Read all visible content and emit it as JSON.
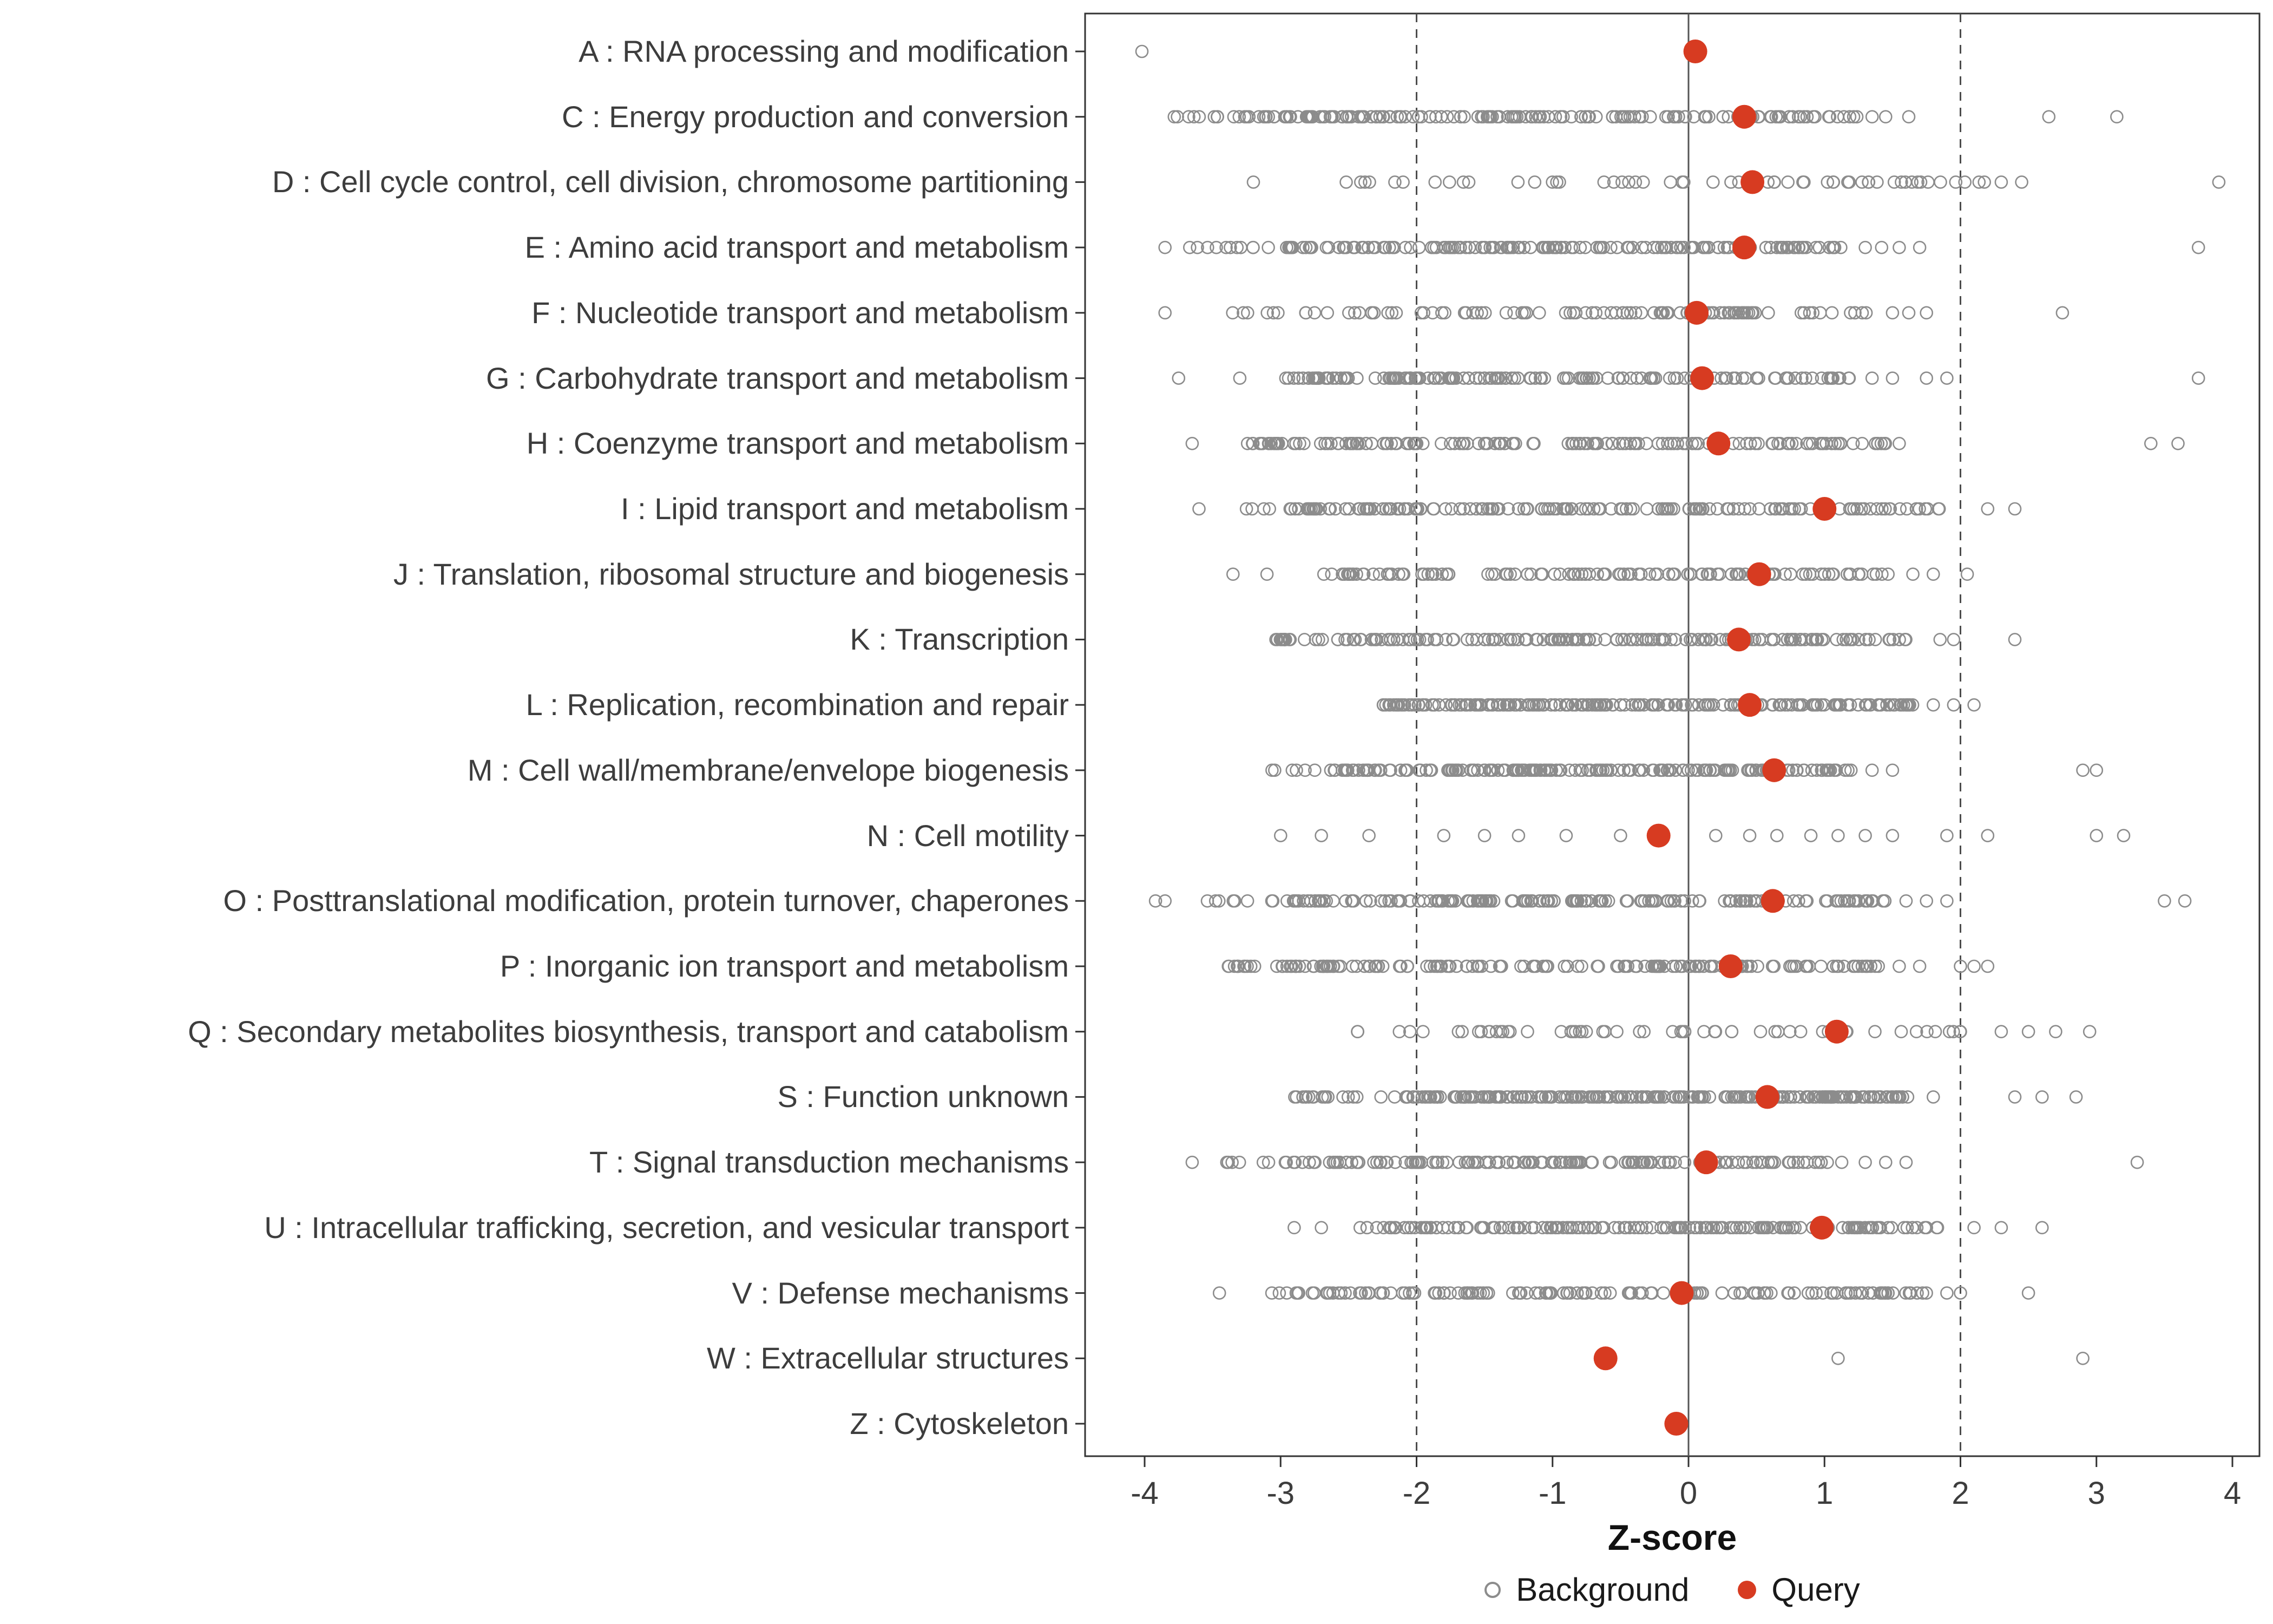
{
  "figure": {
    "xlabel": "Z-score",
    "colors": {
      "query": "#d73b21",
      "background_stroke": "#8c8c8c",
      "axis_text": "#3d3d3d",
      "panel_border": "#333333",
      "reference_line": "#555555"
    }
  },
  "chart_data": {
    "type": "scatter",
    "title": "",
    "xlabel": "Z-score",
    "ylabel": "",
    "xlim": [
      -4.45,
      4.2
    ],
    "xticks": [
      -4,
      -3,
      -2,
      -1,
      0,
      1,
      2,
      3,
      4
    ],
    "reference_lines": {
      "solid": [
        0
      ],
      "dashed": [
        -2,
        2
      ]
    },
    "legend_position": "bottom",
    "grid": false,
    "legend": [
      {
        "label": "Background",
        "marker": "open-circle",
        "color": "#8c8c8c"
      },
      {
        "label": "Query",
        "marker": "filled-circle",
        "color": "#d73b21"
      }
    ],
    "categories": [
      {
        "label": "A : RNA processing and modification",
        "query_z": 0.05,
        "background": {
          "segments": [],
          "points": [
            -4.02
          ]
        }
      },
      {
        "label": "C : Energy production and conversion",
        "query_z": 0.41,
        "background": {
          "segments": [
            {
              "range": [
                -3.35,
                1.25
              ],
              "n": 170
            },
            {
              "range": [
                -3.85,
                -3.45
              ],
              "n": 8
            }
          ],
          "points": [
            1.35,
            1.45,
            1.62,
            2.65,
            3.15
          ]
        }
      },
      {
        "label": "D : Cell cycle control, cell division, chromosome partitioning",
        "query_z": 0.47,
        "background": {
          "segments": [
            {
              "range": [
                -2.6,
                2.2
              ],
              "n": 56
            }
          ],
          "points": [
            -3.2,
            2.3,
            2.45,
            3.9
          ]
        }
      },
      {
        "label": "E : Amino acid transport and metabolism",
        "query_z": 0.41,
        "background": {
          "segments": [
            {
              "range": [
                -3.1,
                1.15
              ],
              "n": 160
            },
            {
              "range": [
                -3.7,
                -3.2
              ],
              "n": 10
            }
          ],
          "points": [
            -3.85,
            1.3,
            1.42,
            1.55,
            1.7,
            3.75
          ]
        }
      },
      {
        "label": "F : Nucleotide transport and metabolism",
        "query_z": 0.06,
        "background": {
          "segments": [
            {
              "range": [
                -2.9,
                1.35
              ],
              "n": 95
            },
            {
              "range": [
                -3.5,
                -3.0
              ],
              "n": 6
            }
          ],
          "points": [
            -3.85,
            1.5,
            1.62,
            1.75,
            2.75
          ]
        }
      },
      {
        "label": "G : Carbohydrate transport and metabolism",
        "query_z": 0.1,
        "background": {
          "segments": [
            {
              "range": [
                -3.05,
                1.2
              ],
              "n": 150
            }
          ],
          "points": [
            -3.75,
            -3.3,
            1.35,
            1.5,
            1.75,
            1.9,
            3.75
          ]
        }
      },
      {
        "label": "H : Coenzyme transport and metabolism",
        "query_z": 0.22,
        "background": {
          "segments": [
            {
              "range": [
                -3.25,
                1.45
              ],
              "n": 150
            }
          ],
          "points": [
            -3.65,
            1.55,
            3.4,
            3.6
          ]
        }
      },
      {
        "label": "I : Lipid transport and metabolism",
        "query_z": 1.0,
        "background": {
          "segments": [
            {
              "range": [
                -2.95,
                1.85
              ],
              "n": 160
            },
            {
              "range": [
                -3.3,
                -3.0
              ],
              "n": 4
            }
          ],
          "points": [
            -3.6,
            2.2,
            2.4
          ]
        }
      },
      {
        "label": "J : Translation, ribosomal structure and biogenesis",
        "query_z": 0.52,
        "background": {
          "segments": [
            {
              "range": [
                -2.8,
                1.5
              ],
              "n": 120
            }
          ],
          "points": [
            -3.35,
            -3.1,
            1.65,
            1.8,
            2.05
          ]
        }
      },
      {
        "label": "K : Transcription",
        "query_z": 0.37,
        "background": {
          "segments": [
            {
              "range": [
                -3.05,
                1.6
              ],
              "n": 175
            }
          ],
          "points": [
            1.85,
            1.95,
            2.4
          ]
        }
      },
      {
        "label": "L : Replication, recombination and repair",
        "query_z": 0.45,
        "background": {
          "segments": [
            {
              "range": [
                -2.25,
                1.65
              ],
              "n": 210
            }
          ],
          "points": [
            1.8,
            1.95,
            2.1
          ]
        }
      },
      {
        "label": "M : Cell wall/membrane/envelope biogenesis",
        "query_z": 0.63,
        "background": {
          "segments": [
            {
              "range": [
                -2.65,
                1.2
              ],
              "n": 190
            },
            {
              "range": [
                -3.1,
                -2.7
              ],
              "n": 6
            }
          ],
          "points": [
            1.35,
            1.5,
            2.9,
            3.0
          ]
        }
      },
      {
        "label": "N : Cell motility",
        "query_z": -0.22,
        "background": {
          "segments": [],
          "points": [
            -3.0,
            -2.7,
            -2.35,
            -1.8,
            -1.5,
            -1.25,
            -0.9,
            -0.5,
            0.2,
            0.45,
            0.65,
            0.9,
            1.1,
            1.3,
            1.5,
            1.9,
            2.2,
            3.0,
            3.2
          ]
        }
      },
      {
        "label": "O : Posttranslational modification, protein turnover, chaperones",
        "query_z": 0.62,
        "background": {
          "segments": [
            {
              "range": [
                -3.0,
                1.45
              ],
              "n": 180
            },
            {
              "range": [
                -3.55,
                -3.05
              ],
              "n": 8
            }
          ],
          "points": [
            -3.92,
            -3.85,
            1.6,
            1.75,
            1.9,
            3.5,
            3.65
          ]
        }
      },
      {
        "label": "P : Inorganic ion transport and metabolism",
        "query_z": 0.31,
        "background": {
          "segments": [
            {
              "range": [
                -3.45,
                1.4
              ],
              "n": 160
            }
          ],
          "points": [
            1.55,
            1.7,
            2.0,
            2.1,
            2.2
          ]
        }
      },
      {
        "label": "Q : Secondary metabolites biosynthesis, transport and catabolism",
        "query_z": 1.09,
        "background": {
          "segments": [
            {
              "range": [
                -2.5,
                2.1
              ],
              "n": 58
            }
          ],
          "points": [
            2.3,
            2.5,
            2.7,
            2.95
          ]
        }
      },
      {
        "label": "S : Function unknown",
        "query_z": 0.58,
        "background": {
          "segments": [
            {
              "range": [
                -2.1,
                1.65
              ],
              "n": 230
            },
            {
              "range": [
                -2.9,
                -2.15
              ],
              "n": 18
            }
          ],
          "points": [
            1.8,
            2.4,
            2.6,
            2.85
          ]
        }
      },
      {
        "label": "T : Signal transduction mechanisms",
        "query_z": 0.13,
        "background": {
          "segments": [
            {
              "range": [
                -3.0,
                1.15
              ],
              "n": 150
            },
            {
              "range": [
                -3.45,
                -3.05
              ],
              "n": 6
            }
          ],
          "points": [
            -3.65,
            1.3,
            1.45,
            1.6,
            3.3
          ]
        }
      },
      {
        "label": "U : Intracellular trafficking, secretion, and vesicular transport",
        "query_z": 0.98,
        "background": {
          "segments": [
            {
              "range": [
                -2.45,
                1.9
              ],
              "n": 170
            }
          ],
          "points": [
            -2.9,
            -2.7,
            2.1,
            2.3,
            2.6
          ]
        }
      },
      {
        "label": "V : Defense mechanisms",
        "query_z": -0.05,
        "background": {
          "segments": [
            {
              "range": [
                -3.15,
                1.75
              ],
              "n": 140
            }
          ],
          "points": [
            -3.45,
            1.9,
            2.0,
            2.5
          ]
        }
      },
      {
        "label": "W : Extracellular structures",
        "query_z": -0.61,
        "background": {
          "segments": [],
          "points": [
            1.1,
            2.9
          ]
        }
      },
      {
        "label": "Z : Cytoskeleton",
        "query_z": -0.09,
        "background": {
          "segments": [],
          "points": []
        }
      }
    ]
  }
}
